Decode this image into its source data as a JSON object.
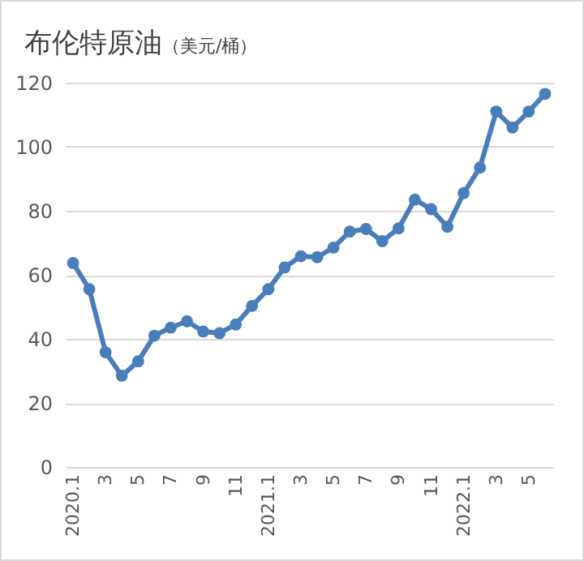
{
  "chart_data": {
    "type": "line",
    "title": "布伦特原油",
    "subtitle": "（美元/桶）",
    "categories": [
      "2020.1",
      null,
      "3",
      null,
      "5",
      null,
      "7",
      null,
      "9",
      null,
      "11",
      null,
      "2021.1",
      null,
      "3",
      null,
      "5",
      null,
      "7",
      null,
      "9",
      null,
      "11",
      null,
      "2022.1",
      null,
      "3",
      null,
      "5",
      null
    ],
    "series": [
      {
        "color": "#4a7ebb",
        "values": [
          63.7,
          55.5,
          35.8,
          28.5,
          33,
          41,
          43.5,
          45.5,
          42.3,
          41.8,
          44.5,
          50.3,
          55.5,
          62.3,
          65.8,
          65.5,
          68.5,
          73.5,
          74.3,
          70.5,
          74.5,
          83.5,
          80.5,
          75,
          85.5,
          93.5,
          111,
          106,
          111,
          116.5
        ]
      }
    ],
    "ylim": [
      0,
      120
    ],
    "yticks": [
      0,
      20,
      40,
      60,
      80,
      100,
      120
    ],
    "grid": "y",
    "marker": "circle",
    "line_style": "solid"
  }
}
